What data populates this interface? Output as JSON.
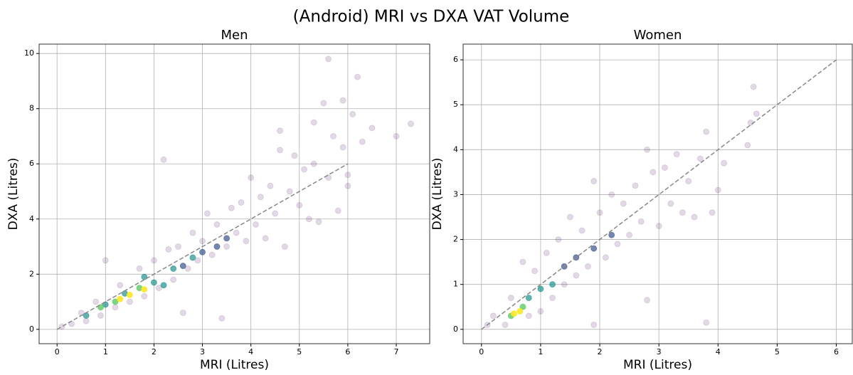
{
  "title": "(Android) MRI vs DXA VAT Volume",
  "chart_data": [
    {
      "type": "scatter",
      "title": "Men",
      "xlabel": "MRI (Litres)",
      "ylabel": "DXA (Litres)",
      "xlim": [
        -0.37,
        7.69
      ],
      "ylim": [
        -0.52,
        10.34
      ],
      "xticks": [
        0,
        1,
        2,
        3,
        4,
        5,
        6,
        7
      ],
      "yticks": [
        0,
        2,
        4,
        6,
        8,
        10
      ],
      "grid": true,
      "reference_line": {
        "x": [
          0,
          6
        ],
        "y": [
          0,
          6
        ],
        "color": "#888888"
      },
      "groups": [
        {
          "color": "#440154",
          "alpha": 0.15,
          "x": [
            0.1,
            0.3,
            0.5,
            0.6,
            0.8,
            0.9,
            1.0,
            1.2,
            1.3,
            1.5,
            1.7,
            1.8,
            2.0,
            2.1,
            2.2,
            2.3,
            2.4,
            2.5,
            2.6,
            2.7,
            2.8,
            2.9,
            3.0,
            3.1,
            3.2,
            3.3,
            3.4,
            3.5,
            3.6,
            3.7,
            3.8,
            3.9,
            4.0,
            4.1,
            4.2,
            4.3,
            4.4,
            4.5,
            4.6,
            4.7,
            4.8,
            4.9,
            5.0,
            5.1,
            5.2,
            5.3,
            5.4,
            5.5,
            5.6,
            5.6,
            5.7,
            5.8,
            5.9,
            6.0,
            6.1,
            6.2,
            6.3,
            6.5,
            7.0,
            7.3,
            4.6,
            5.3,
            5.9,
            6.0
          ],
          "y": [
            0.1,
            0.2,
            0.6,
            0.3,
            1.0,
            0.5,
            2.5,
            0.8,
            1.6,
            1.0,
            2.2,
            1.2,
            2.5,
            1.5,
            6.15,
            2.9,
            1.8,
            3.0,
            0.6,
            2.2,
            3.5,
            2.5,
            3.2,
            4.2,
            2.7,
            3.8,
            0.4,
            3.0,
            4.4,
            3.5,
            4.6,
            3.2,
            5.5,
            3.8,
            4.8,
            3.3,
            5.2,
            4.2,
            6.5,
            3.0,
            5.0,
            6.3,
            4.5,
            5.8,
            4.0,
            6.0,
            3.9,
            8.2,
            9.8,
            5.5,
            7.0,
            4.3,
            6.6,
            5.2,
            7.8,
            9.15,
            6.8,
            7.3,
            7.0,
            7.45,
            7.2,
            7.5,
            8.3,
            5.6
          ]
        },
        {
          "color": "#3b528b",
          "alpha": 0.7,
          "x": [
            3.0,
            3.3,
            2.6,
            3.5
          ],
          "y": [
            2.8,
            3.0,
            2.3,
            3.3
          ]
        },
        {
          "color": "#21918c",
          "alpha": 0.7,
          "x": [
            0.6,
            1.0,
            1.4,
            2.0,
            2.4,
            2.8,
            2.2,
            1.8
          ],
          "y": [
            0.5,
            0.9,
            1.3,
            1.7,
            2.2,
            2.6,
            1.6,
            1.9
          ]
        },
        {
          "color": "#5ec962",
          "alpha": 0.8,
          "x": [
            0.9,
            1.2,
            1.7
          ],
          "y": [
            0.8,
            1.0,
            1.5
          ]
        },
        {
          "color": "#fde725",
          "alpha": 0.9,
          "x": [
            1.3,
            1.5,
            1.8
          ],
          "y": [
            1.1,
            1.25,
            1.45
          ]
        }
      ]
    },
    {
      "type": "scatter",
      "title": "Women",
      "xlabel": "MRI (Litres)",
      "ylabel": "DXA (Litres)",
      "xlim": [
        -0.31,
        6.27
      ],
      "ylim": [
        -0.32,
        6.35
      ],
      "xticks": [
        0,
        1,
        2,
        3,
        4,
        5,
        6
      ],
      "yticks": [
        0,
        1,
        2,
        3,
        4,
        5,
        6
      ],
      "grid": true,
      "reference_line": {
        "x": [
          0,
          6
        ],
        "y": [
          0,
          6
        ],
        "color": "#888888"
      },
      "groups": [
        {
          "color": "#440154",
          "alpha": 0.15,
          "x": [
            0.1,
            0.2,
            0.4,
            0.5,
            0.7,
            0.8,
            0.9,
            1.0,
            1.1,
            1.2,
            1.3,
            1.4,
            1.5,
            1.6,
            1.7,
            1.8,
            1.9,
            1.9,
            2.0,
            2.1,
            2.2,
            2.3,
            2.4,
            2.5,
            2.6,
            2.7,
            2.8,
            2.8,
            2.9,
            3.0,
            3.1,
            3.2,
            3.3,
            3.4,
            3.5,
            3.6,
            3.7,
            3.8,
            3.8,
            3.9,
            4.0,
            4.1,
            4.5,
            4.55,
            4.6,
            4.65
          ],
          "y": [
            0.1,
            0.3,
            0.1,
            0.7,
            1.5,
            0.3,
            1.3,
            0.4,
            1.7,
            0.7,
            2.0,
            1.0,
            2.5,
            1.2,
            2.2,
            1.4,
            3.3,
            0.1,
            2.6,
            1.6,
            3.0,
            1.9,
            2.8,
            2.1,
            3.2,
            2.4,
            4.0,
            0.65,
            3.5,
            2.3,
            3.6,
            2.8,
            3.9,
            2.6,
            3.3,
            2.5,
            3.8,
            4.4,
            0.15,
            2.6,
            3.1,
            3.7,
            4.1,
            4.6,
            5.4,
            4.8
          ]
        },
        {
          "color": "#3b528b",
          "alpha": 0.7,
          "x": [
            1.6,
            1.9,
            2.2,
            1.4
          ],
          "y": [
            1.6,
            1.8,
            2.1,
            1.4
          ]
        },
        {
          "color": "#21918c",
          "alpha": 0.7,
          "x": [
            0.8,
            1.0,
            1.2
          ],
          "y": [
            0.7,
            0.9,
            1.0
          ]
        },
        {
          "color": "#5ec962",
          "alpha": 0.8,
          "x": [
            0.5,
            0.7
          ],
          "y": [
            0.3,
            0.5
          ]
        },
        {
          "color": "#fde725",
          "alpha": 0.9,
          "x": [
            0.55,
            0.65
          ],
          "y": [
            0.35,
            0.4
          ]
        }
      ]
    }
  ]
}
